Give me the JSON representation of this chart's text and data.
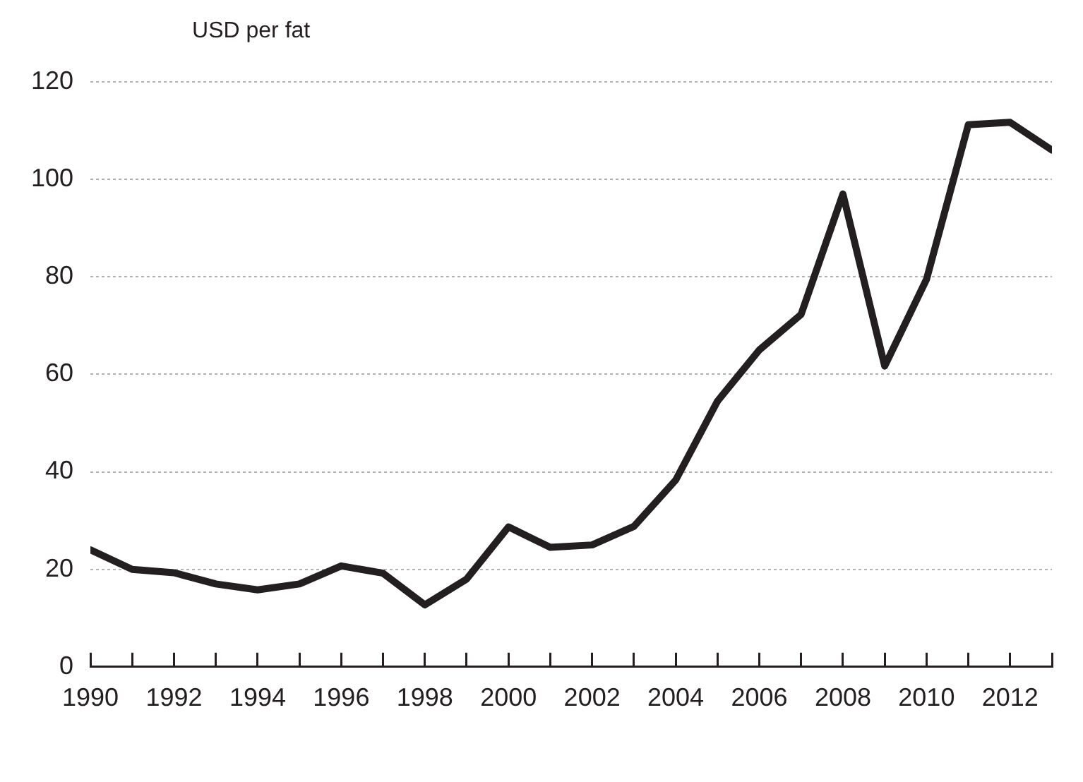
{
  "chart_data": {
    "type": "line",
    "ylabel": "USD per fat",
    "x": [
      1990,
      1991,
      1992,
      1993,
      1994,
      1995,
      1996,
      1997,
      1998,
      1999,
      2000,
      2001,
      2002,
      2003,
      2004,
      2005,
      2006,
      2007,
      2008,
      2009,
      2010,
      2011,
      2012,
      2013
    ],
    "series": [
      {
        "color": "#231f20",
        "values": [
          24,
          20,
          19.3,
          17,
          15.8,
          17,
          20.7,
          19.2,
          12.7,
          18,
          28.7,
          24.5,
          25,
          28.8,
          38.3,
          54.5,
          65,
          72.3,
          97,
          61.7,
          79.5,
          111.2,
          111.7,
          106
        ]
      }
    ],
    "xlim": [
      1990,
      2013
    ],
    "xticks": [
      1990,
      {
        "value": 1991,
        "label": null
      },
      1992,
      {
        "value": 1993,
        "label": null
      },
      1994,
      {
        "value": 1995,
        "label": null
      },
      1996,
      {
        "value": 1997,
        "label": null
      },
      1998,
      {
        "value": 1999,
        "label": null
      },
      2000,
      {
        "value": 2001,
        "label": null
      },
      2002,
      {
        "value": 2003,
        "label": null
      },
      2004,
      {
        "value": 2005,
        "label": null
      },
      2006,
      {
        "value": 2007,
        "label": null
      },
      2008,
      {
        "value": 2009,
        "label": null
      },
      2010,
      {
        "value": 2011,
        "label": null
      },
      2012,
      {
        "value": 2013,
        "label": null
      }
    ],
    "ylim": [
      0,
      120
    ],
    "yticks": [
      0,
      20,
      40,
      60,
      80,
      100,
      120
    ],
    "grid": "y",
    "legend": false,
    "marker": "none",
    "line_style": "solid"
  }
}
